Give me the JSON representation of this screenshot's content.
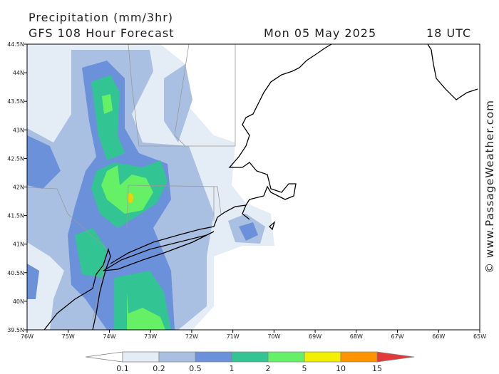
{
  "header": {
    "title": "Precipitation (mm/3hr)",
    "model": "GFS 108 Hour Forecast",
    "date": "Mon 05 May 2025",
    "time": "18 UTC"
  },
  "map": {
    "lon_labels": [
      "76W",
      "75W",
      "74W",
      "73W",
      "72W",
      "71W",
      "70W",
      "69W",
      "68W",
      "67W",
      "66W",
      "65W"
    ],
    "lat_labels": [
      "44.5N",
      "44N",
      "43.5N",
      "43N",
      "42.5N",
      "42N",
      "41.5N",
      "41N",
      "40.5N",
      "40N",
      "39.5N"
    ]
  },
  "legend": {
    "levels": [
      0.1,
      0.2,
      0.5,
      1,
      2,
      5,
      10,
      15
    ],
    "colors": [
      "#ffffff",
      "#e4ecf6",
      "#a9c0e2",
      "#6b91da",
      "#33c493",
      "#66f066",
      "#f2f000",
      "#ff9400",
      "#e23a3a"
    ]
  },
  "credit": "© www.PassageWeather.com"
}
